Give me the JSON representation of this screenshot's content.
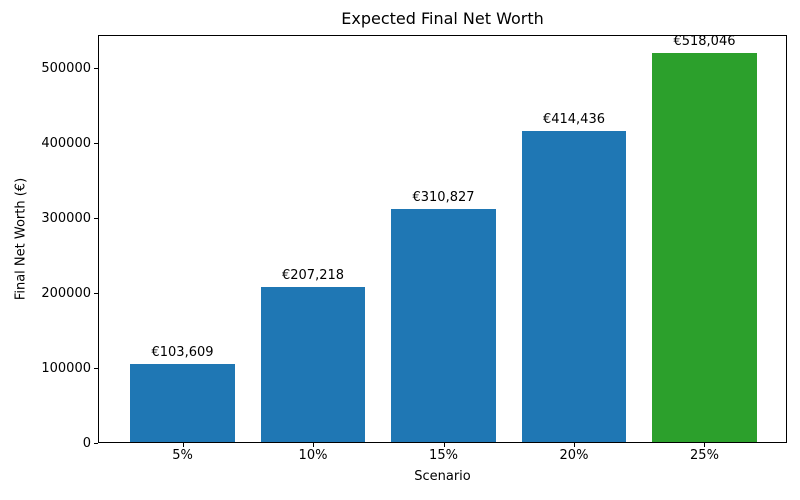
{
  "chart_data": {
    "type": "bar",
    "title": "Expected Final Net Worth",
    "xlabel": "Scenario",
    "ylabel": "Final Net Worth (€)",
    "categories": [
      "5%",
      "10%",
      "15%",
      "20%",
      "25%"
    ],
    "values": [
      103609,
      207218,
      310827,
      414436,
      518046
    ],
    "bar_labels": [
      "€103,609",
      "€207,218",
      "€310,827",
      "€414,436",
      "€518,046"
    ],
    "bar_colors": [
      "#1f77b4",
      "#1f77b4",
      "#1f77b4",
      "#1f77b4",
      "#2ca02c"
    ],
    "y_ticks": [
      0,
      100000,
      200000,
      300000,
      400000,
      500000
    ],
    "y_tick_labels": [
      "0",
      "100000",
      "200000",
      "300000",
      "400000",
      "500000"
    ],
    "ylim": [
      0,
      543948
    ],
    "grid": false,
    "legend": null,
    "colors": {
      "bar_blue": "#1f77b4",
      "bar_green": "#2ca02c",
      "axis": "#000000",
      "background": "#ffffff"
    }
  }
}
